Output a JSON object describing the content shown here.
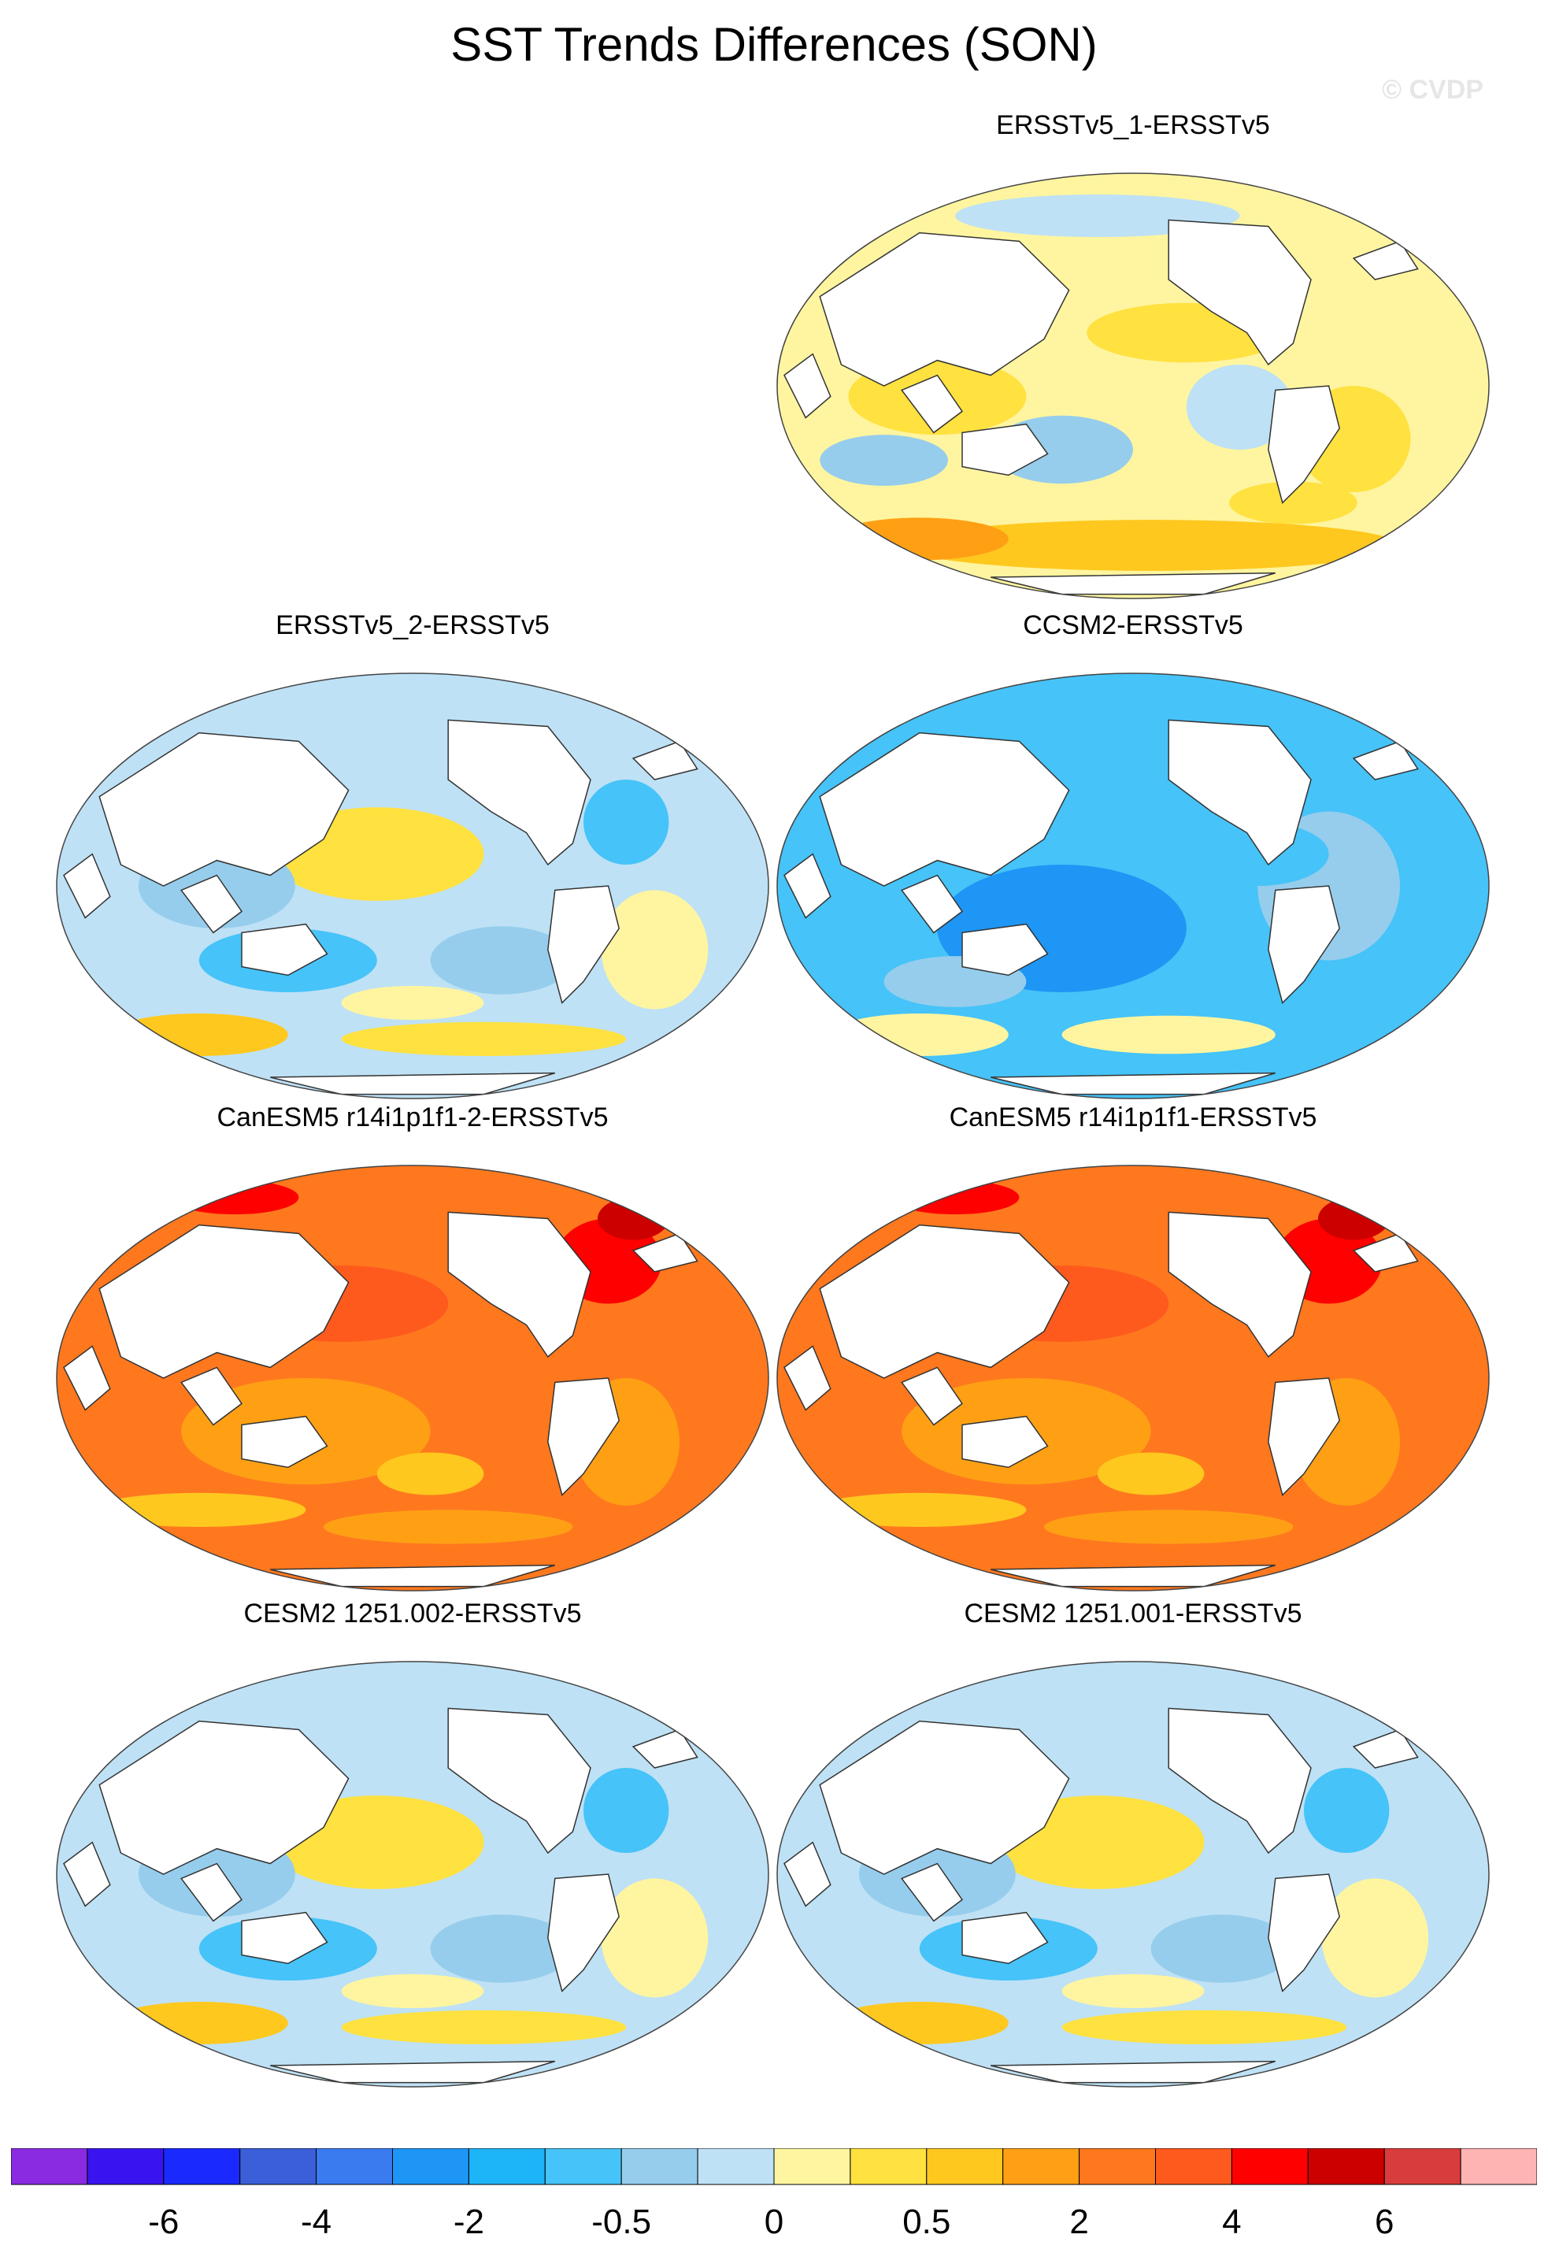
{
  "title": "SST Trends Differences (SON)",
  "watermark": "© CVDP",
  "panels": [
    {
      "id": "p1",
      "title": "ERSSTv5_1-ERSSTv5",
      "dominant": "warm-mixed"
    },
    {
      "id": "p2",
      "title": "ERSSTv5_2-ERSSTv5",
      "dominant": "cool-mixed"
    },
    {
      "id": "p3",
      "title": "CCSM2-ERSSTv5",
      "dominant": "cool"
    },
    {
      "id": "p4",
      "title": "CanESM5 r14i1p1f1-2-ERSSTv5",
      "dominant": "hot"
    },
    {
      "id": "p5",
      "title": "CanESM5 r14i1p1f1-ERSSTv5",
      "dominant": "hot"
    },
    {
      "id": "p6",
      "title": "CESM2 1251.002-ERSSTv5",
      "dominant": "cool-mixed"
    },
    {
      "id": "p7",
      "title": "CESM2 1251.001-ERSSTv5",
      "dominant": "cool-mixed"
    }
  ],
  "colorbar": {
    "colors": [
      "#8a2be2",
      "#3a14f0",
      "#1a2aff",
      "#3a5fd8",
      "#3a7cf0",
      "#1e96f5",
      "#1eb4f8",
      "#46c3f8",
      "#96cdec",
      "#bee1f5",
      "#fff5a0",
      "#ffe140",
      "#ffc81e",
      "#ffa014",
      "#ff781e",
      "#ff5a1e",
      "#ff0000",
      "#cd0000",
      "#d83c3c",
      "#ffb4b4"
    ],
    "labels": [
      "-6",
      "-4",
      "-2",
      "-0.5",
      "0",
      "0.5",
      "2",
      "4",
      "6"
    ]
  },
  "palette": {
    "coolLight": "#bee1f5",
    "coolMid": "#96cdec",
    "cool": "#46c3f8",
    "coolDeep": "#1e96f5",
    "warmLight": "#fff5a0",
    "warm": "#ffe140",
    "warmMid": "#ffc81e",
    "warmDeep": "#ffa014",
    "hot": "#ff781e",
    "hotDeep": "#ff5a1e",
    "red": "#ff0000",
    "darkred": "#cd0000"
  }
}
